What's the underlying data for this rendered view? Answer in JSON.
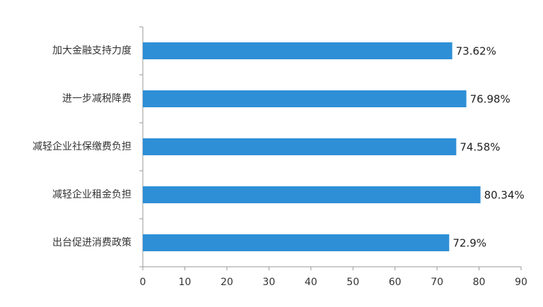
{
  "chart_data": {
    "type": "hbar",
    "categories": [
      "加大金融支持力度",
      "进一步减税降费",
      "减轻企业社保缴费负担",
      "减轻企业租金负担",
      "出台促进消费政策"
    ],
    "values": [
      73.62,
      76.98,
      74.58,
      80.34,
      72.9
    ],
    "value_labels": [
      "73.62%",
      "76.98%",
      "74.58%",
      "80.34%",
      "72.9%"
    ],
    "color": "#2e8fd6",
    "xlim": [
      0,
      90
    ],
    "xticks": [
      0,
      10,
      20,
      30,
      40,
      50,
      60,
      70,
      80,
      90
    ]
  }
}
